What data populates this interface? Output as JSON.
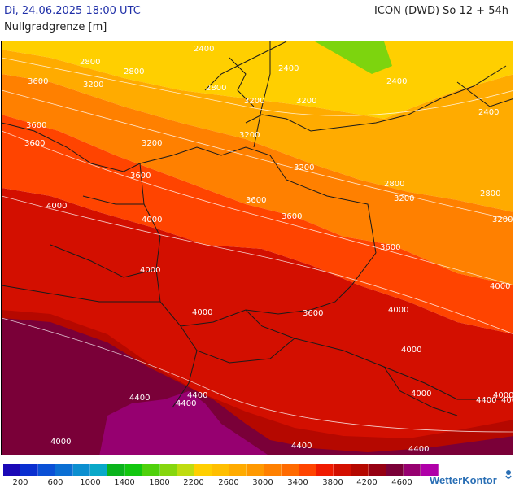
{
  "header": {
    "valid_time": "Di, 24.06.2025 18:00 UTC",
    "model_run": "ICON (DWD) So 12 + 54h",
    "parameter": "Nullgradgrenze [m]"
  },
  "map": {
    "contour_labels": [
      "2800",
      "2400",
      "2800",
      "2400",
      "2800",
      "3600",
      "3200",
      "3200",
      "3200",
      "2400",
      "3600",
      "3600",
      "3200",
      "3200",
      "2400",
      "3200",
      "2800",
      "2800",
      "3600",
      "3600",
      "3200",
      "3200",
      "4000",
      "4000",
      "3600",
      "3600",
      "4000",
      "4000",
      "3600",
      "4000",
      "4000",
      "4000",
      "4000",
      "4000",
      "4000",
      "4400",
      "4400",
      "4000",
      "4400",
      "4400",
      "4400",
      "4400"
    ]
  },
  "legend": {
    "colors": [
      "#1a08b6",
      "#0a2fd0",
      "#0a50d6",
      "#0b6fd3",
      "#0c8fd0",
      "#09a8c8",
      "#0ab31c",
      "#12c70f",
      "#4fd10c",
      "#86d60e",
      "#bfdc10",
      "#ffcf00",
      "#ffbf00",
      "#ffab00",
      "#ff9900",
      "#ff8000",
      "#ff6a00",
      "#ff4400",
      "#f01a00",
      "#d30f00",
      "#b50800",
      "#960012",
      "#7a0038",
      "#960070",
      "#b000a8"
    ],
    "ticks": [
      "200",
      "600",
      "1000",
      "1400",
      "1800",
      "2200",
      "2600",
      "3000",
      "3400",
      "3800",
      "4200",
      "4600"
    ],
    "brand": "WetterKontor"
  }
}
